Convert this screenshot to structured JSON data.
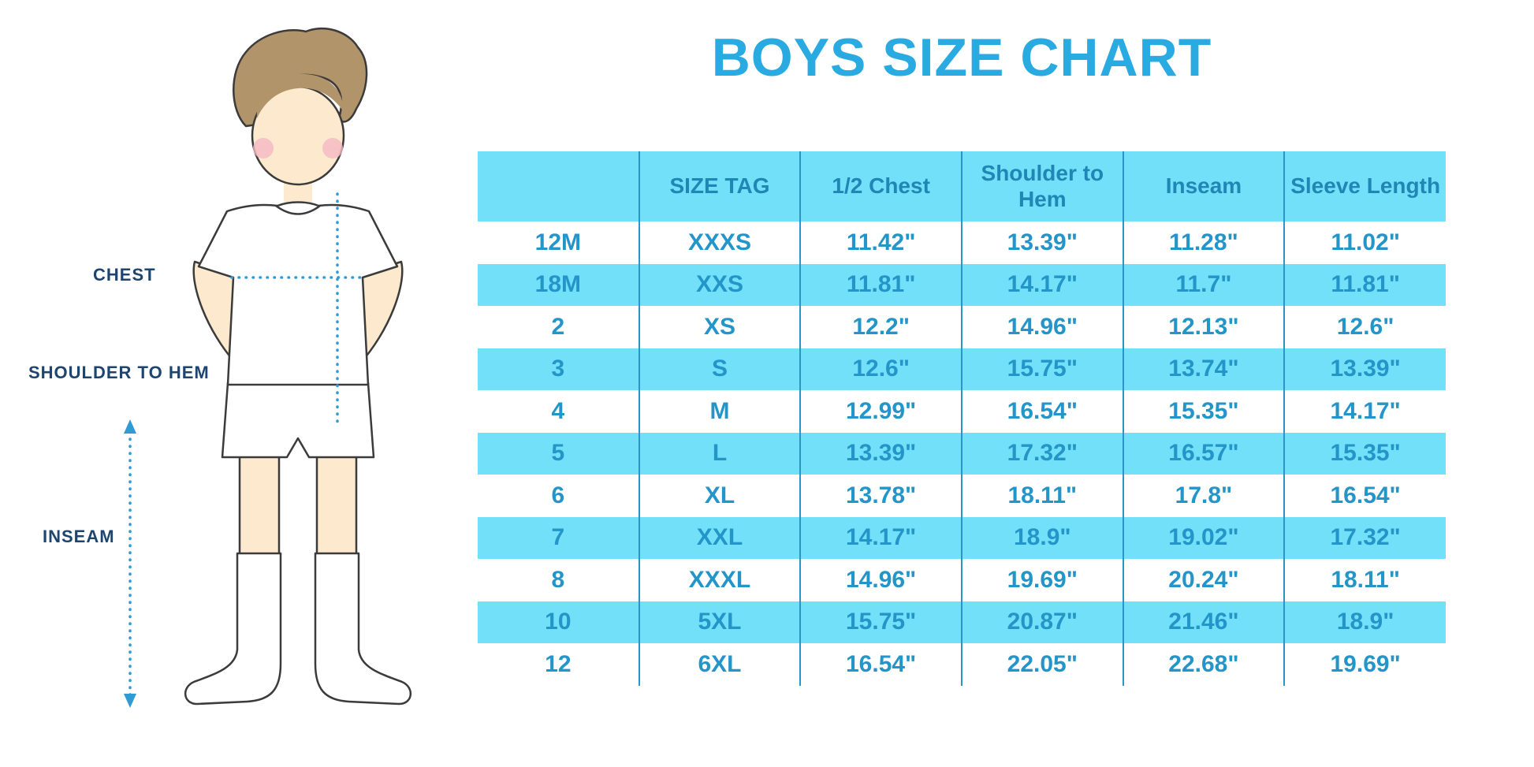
{
  "title": "BOYS SIZE CHART",
  "figure": {
    "labels": {
      "chest": "CHEST",
      "shoulder_to_hem": "SHOULDER TO HEM",
      "inseam": "INSEAM"
    }
  },
  "colors": {
    "title_color": "#29ABE2",
    "header_bg": "#71E0F8",
    "stripe_bg": "#71E0F8",
    "header_text": "#1F86B5",
    "cell_text": "#2395C9",
    "divider": "#2A96C6",
    "label_text": "#1E4470",
    "measure_line": "#2E9BD6"
  },
  "chart_data": {
    "type": "table",
    "title": "BOYS SIZE CHART",
    "columns": [
      "",
      "SIZE TAG",
      "1/2 Chest",
      "Shoulder to Hem",
      "Inseam",
      "Sleeve Length"
    ],
    "rows": [
      [
        "12M",
        "XXXS",
        "11.42\"",
        "13.39\"",
        "11.28\"",
        "11.02\""
      ],
      [
        "18M",
        "XXS",
        "11.81\"",
        "14.17\"",
        "11.7\"",
        "11.81\""
      ],
      [
        "2",
        "XS",
        "12.2\"",
        "14.96\"",
        "12.13\"",
        "12.6\""
      ],
      [
        "3",
        "S",
        "12.6\"",
        "15.75\"",
        "13.74\"",
        "13.39\""
      ],
      [
        "4",
        "M",
        "12.99\"",
        "16.54\"",
        "15.35\"",
        "14.17\""
      ],
      [
        "5",
        "L",
        "13.39\"",
        "17.32\"",
        "16.57\"",
        "15.35\""
      ],
      [
        "6",
        "XL",
        "13.78\"",
        "18.11\"",
        "17.8\"",
        "16.54\""
      ],
      [
        "7",
        "XXL",
        "14.17\"",
        "18.9\"",
        "19.02\"",
        "17.32\""
      ],
      [
        "8",
        "XXXL",
        "14.96\"",
        "19.69\"",
        "20.24\"",
        "18.11\""
      ],
      [
        "10",
        "5XL",
        "15.75\"",
        "20.87\"",
        "21.46\"",
        "18.9\""
      ],
      [
        "12",
        "6XL",
        "16.54\"",
        "22.05\"",
        "22.68\"",
        "19.69\""
      ]
    ]
  }
}
